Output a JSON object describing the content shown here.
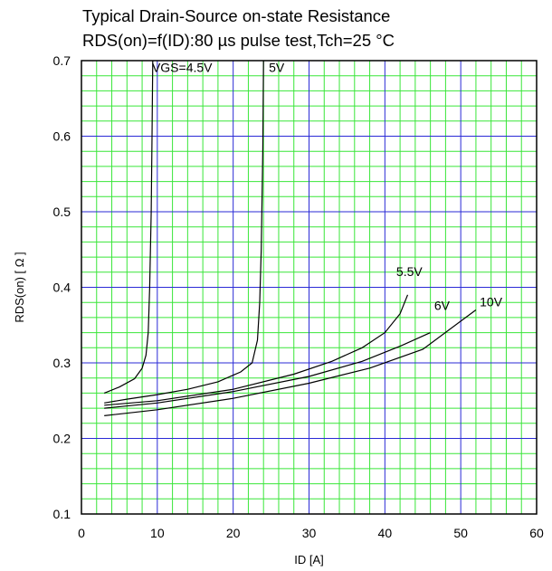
{
  "chart_data": {
    "type": "line",
    "title": "Typical Drain-Source on-state Resistance",
    "subtitle": "RDS(on)=f(ID):80 µs pulse test,Tch=25 °C",
    "xlabel": "ID [A]",
    "ylabel": "RDS(on) [ Ω ]",
    "xlim": [
      0,
      60
    ],
    "ylim": [
      0.1,
      0.7
    ],
    "x_ticks": [
      0,
      10,
      20,
      30,
      40,
      50,
      60
    ],
    "y_ticks": [
      0.1,
      0.2,
      0.3,
      0.4,
      0.5,
      0.6,
      0.7
    ],
    "x_tick_labels": [
      "0",
      "10",
      "20",
      "30",
      "40",
      "50",
      "60"
    ],
    "y_tick_labels": [
      "0.1",
      "0.2",
      "0.3",
      "0.4",
      "0.5",
      "0.6",
      "0.7"
    ],
    "grid": true,
    "colors": {
      "major_grid": "#2a2ad6",
      "minor_grid": "#39e639",
      "curve": "#000000",
      "frame": "#000000"
    },
    "series": [
      {
        "name": "VGS=4.5V",
        "x": [
          3,
          5,
          7,
          8,
          8.5,
          8.8,
          9.0,
          9.2,
          9.3,
          9.4
        ],
        "y": [
          0.26,
          0.268,
          0.279,
          0.293,
          0.31,
          0.34,
          0.4,
          0.5,
          0.6,
          0.7
        ]
      },
      {
        "name": "5V",
        "x": [
          3,
          6,
          10,
          14,
          18,
          21,
          22.5,
          23.2,
          23.5,
          23.7,
          23.9,
          24.0
        ],
        "y": [
          0.247,
          0.252,
          0.258,
          0.265,
          0.275,
          0.288,
          0.3,
          0.33,
          0.38,
          0.45,
          0.58,
          0.7
        ]
      },
      {
        "name": "5.5V",
        "x": [
          3,
          10,
          20,
          28,
          33,
          37,
          40,
          42,
          43
        ],
        "y": [
          0.244,
          0.25,
          0.265,
          0.285,
          0.302,
          0.32,
          0.34,
          0.365,
          0.39
        ]
      },
      {
        "name": "6V",
        "x": [
          3,
          10,
          20,
          30,
          37,
          42,
          46
        ],
        "y": [
          0.24,
          0.247,
          0.262,
          0.282,
          0.302,
          0.322,
          0.34
        ]
      },
      {
        "name": "10V",
        "x": [
          3,
          10,
          20,
          30,
          38,
          45,
          52
        ],
        "y": [
          0.23,
          0.238,
          0.253,
          0.273,
          0.293,
          0.318,
          0.37
        ]
      }
    ],
    "curve_labels": [
      {
        "text": "VGS=4.5V",
        "x": 9.3,
        "y": 0.685
      },
      {
        "text": "5V",
        "x": 24.7,
        "y": 0.685
      },
      {
        "text": "5.5V",
        "x": 41.5,
        "y": 0.415
      },
      {
        "text": "6V",
        "x": 46.5,
        "y": 0.37
      },
      {
        "text": "10V",
        "x": 52.5,
        "y": 0.375
      }
    ]
  }
}
